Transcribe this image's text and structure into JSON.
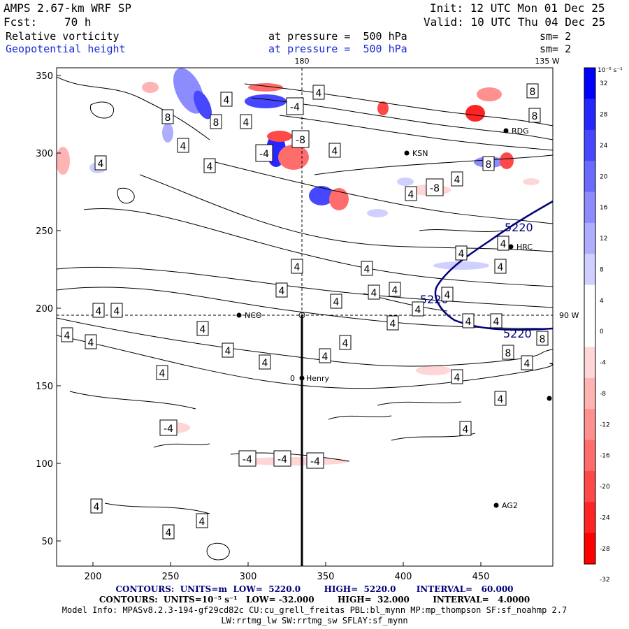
{
  "header": {
    "model": "AMPS 2.67-km WRF SP",
    "init": "Init: 12 UTC Mon 01 Dec 25",
    "fcst_label": "Fcst:",
    "fcst_value": "70 h",
    "valid": "Valid: 10 UTC Thu 04 Dec 25",
    "field1": "Relative vorticity",
    "field1_level": "at pressure =  500 hPa",
    "field1_sm": "sm= 2",
    "field2": "Geopotential height",
    "field2_level": "at pressure =  500 hPa",
    "field2_sm": "sm= 2"
  },
  "map": {
    "top_labels": [
      "180",
      "135 W"
    ],
    "right_label": "90 W",
    "x_ticks": [
      "200",
      "250",
      "300",
      "350",
      "400",
      "450"
    ],
    "y_ticks": [
      "350",
      "300",
      "250",
      "200",
      "150",
      "100",
      "50"
    ],
    "stations": [
      {
        "name": "NCO"
      },
      {
        "name": "Henry"
      },
      {
        "name": "HRC"
      },
      {
        "name": "AG2"
      },
      {
        "name": "RDG"
      },
      {
        "name": "KSN"
      }
    ],
    "henry_prefix": "0",
    "height_contour": "5220",
    "contour_labels": [
      "4",
      "8",
      "-4",
      "-8"
    ]
  },
  "colorbar": {
    "unit": "10⁻⁵ s⁻¹",
    "levels": [
      "32",
      "28",
      "24",
      "20",
      "16",
      "12",
      "8",
      "4",
      "0",
      "-4",
      "-8",
      "-12",
      "-16",
      "-20",
      "-24",
      "-28",
      "-32"
    ],
    "colors": [
      "#0000ff",
      "#2626ff",
      "#4747ff",
      "#6a6aff",
      "#8c8cff",
      "#aeaeff",
      "#d0d0ff",
      "#ffffff",
      "#ffffff",
      "#ffd6d6",
      "#ffb4b4",
      "#ff9090",
      "#ff6c6c",
      "#ff4848",
      "#ff2424",
      "#ff0000"
    ]
  },
  "footer": {
    "line1": "CONTOURS:  UNITS=m  LOW=  5220.0        HIGH=  5220.0       INTERVAL=   60.000",
    "line2": "CONTOURS:  UNITS=10⁻⁵ s⁻¹   LOW= -32.000        HIGH=  32.000        INTERVAL=   4.0000",
    "line3": "Model Info: MPASv8.2.3-194-gf29cd82c CU:cu_grell_freitas PBL:bl_mynn MP:mp_thompson SF:sf_noahmp 2.7",
    "line4": "LW:rrtmg_lw SW:rrtmg_sw SFLAY:sf_mynn"
  }
}
